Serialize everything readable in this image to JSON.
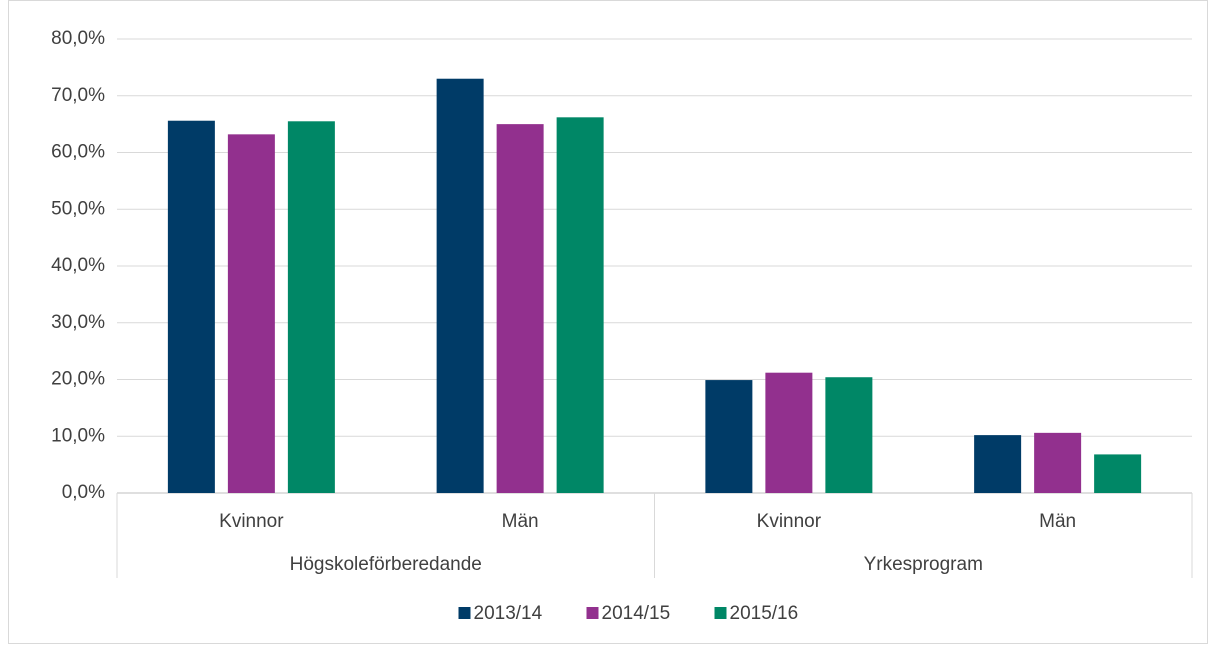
{
  "chart_data": {
    "type": "bar",
    "categories": [
      "Kvinnor",
      "Män",
      "Kvinnor",
      "Män"
    ],
    "category_groups": [
      "Högskoleförberedande",
      "Yrkesprogram"
    ],
    "series": [
      {
        "name": "2013/14",
        "color": "#003b67",
        "values": [
          65.6,
          73.0,
          19.9,
          10.2
        ]
      },
      {
        "name": "2014/15",
        "color": "#92308e",
        "values": [
          63.2,
          65.0,
          21.2,
          10.6
        ]
      },
      {
        "name": "2015/16",
        "color": "#008766",
        "values": [
          65.5,
          66.2,
          20.4,
          6.8
        ]
      }
    ],
    "ylim": [
      0,
      80
    ],
    "yticks": [
      {
        "value": 0,
        "label": "0,0%"
      },
      {
        "value": 10,
        "label": "10,0%"
      },
      {
        "value": 20,
        "label": "20,0%"
      },
      {
        "value": 30,
        "label": "30,0%"
      },
      {
        "value": 40,
        "label": "40,0%"
      },
      {
        "value": 50,
        "label": "50,0%"
      },
      {
        "value": 60,
        "label": "60,0%"
      },
      {
        "value": 70,
        "label": "70,0%"
      },
      {
        "value": 80,
        "label": "80,0%"
      }
    ],
    "grid": true,
    "legend": "bottom"
  }
}
